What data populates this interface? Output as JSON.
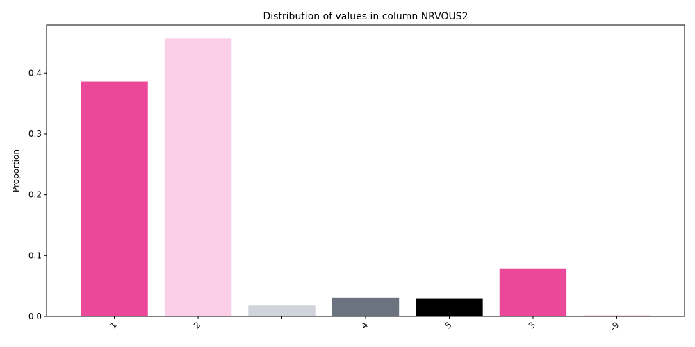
{
  "chart_data": {
    "type": "bar",
    "title": "Distribution of values in column NRVOUS2",
    "xlabel": "",
    "ylabel": "Proportion",
    "categories": [
      "1",
      "2",
      "",
      "4",
      "5",
      "3",
      "-9"
    ],
    "values": [
      0.386,
      0.457,
      0.018,
      0.031,
      0.029,
      0.079,
      0.002
    ],
    "colors": [
      "#ec4899",
      "#fbcfe8",
      "#d1d5db",
      "#6b7280",
      "#000000",
      "#ec4899",
      "#fbcfe8"
    ],
    "ylim": [
      0,
      0.479
    ],
    "yticks": [
      0.0,
      0.1,
      0.2,
      0.3,
      0.4
    ],
    "ytick_labels": [
      "0.0",
      "0.1",
      "0.2",
      "0.3",
      "0.4"
    ],
    "grid": false,
    "legend": "none"
  }
}
